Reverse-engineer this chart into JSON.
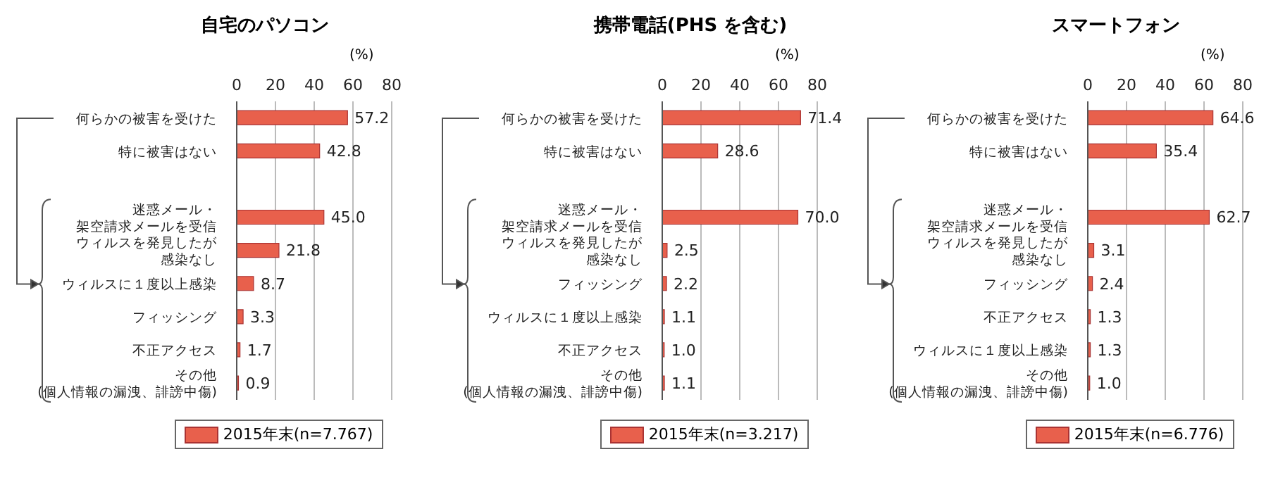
{
  "chart_data": [
    {
      "type": "bar",
      "orientation": "horizontal",
      "title": "自宅のパソコン",
      "xlabel": "(%)",
      "categories": [
        "何らかの被害を受けた",
        "特に被害はない",
        null,
        "迷惑メール・架空請求メールを受信",
        "ウィルスを発見したが感染なし",
        "ウィルスに１度以上感染",
        "フィッシング",
        "不正アクセス",
        "その他(個人情報の漏洩、誹謗中傷)"
      ],
      "series": [
        {
          "name": "2015年末(n=7.767)",
          "color": "#e8604c",
          "values": [
            57.2,
            42.8,
            null,
            45.0,
            21.8,
            8.7,
            3.3,
            1.7,
            0.9
          ],
          "value_labels": [
            "57.2",
            "42.8",
            null,
            "45.0",
            "21.8",
            "8.7",
            "3.3",
            "1.7",
            "0.9"
          ]
        }
      ],
      "xlim": [
        0,
        80
      ],
      "xticks": [
        0,
        20,
        40,
        60,
        80
      ],
      "grid": "x",
      "legend": "bottom"
    },
    {
      "type": "bar",
      "orientation": "horizontal",
      "title": "携帯電話(PHS を含む)",
      "xlabel": "(%)",
      "categories": [
        "何らかの被害を受けた",
        "特に被害はない",
        null,
        "迷惑メール・架空請求メールを受信",
        "ウィルスを発見したが感染なし",
        "フィッシング",
        "ウィルスに１度以上感染",
        "不正アクセス",
        "その他(個人情報の漏洩、誹謗中傷)"
      ],
      "series": [
        {
          "name": "2015年末(n=3.217)",
          "color": "#e8604c",
          "values": [
            71.4,
            28.6,
            null,
            70.0,
            2.5,
            2.2,
            1.1,
            1.0,
            1.1
          ],
          "value_labels": [
            "71.4",
            "28.6",
            null,
            "70.0",
            "2.5",
            "2.2",
            "1.1",
            "1.0",
            "1.1"
          ]
        }
      ],
      "xlim": [
        0,
        80
      ],
      "xticks": [
        0,
        20,
        40,
        60,
        80
      ],
      "grid": "x",
      "legend": "bottom"
    },
    {
      "type": "bar",
      "orientation": "horizontal",
      "title": "スマートフォン",
      "xlabel": "(%)",
      "categories": [
        "何らかの被害を受けた",
        "特に被害はない",
        null,
        "迷惑メール・架空請求メールを受信",
        "ウィルスを発見したが感染なし",
        "フィッシング",
        "不正アクセス",
        "ウィルスに１度以上感染",
        "その他(個人情報の漏洩、誹謗中傷)"
      ],
      "series": [
        {
          "name": "2015年末(n=6.776)",
          "color": "#e8604c",
          "values": [
            64.6,
            35.4,
            null,
            62.7,
            3.1,
            2.4,
            1.3,
            1.3,
            1.0
          ],
          "value_labels": [
            "64.6",
            "35.4",
            null,
            "62.7",
            "3.1",
            "2.4",
            "1.3",
            "1.3",
            "1.0"
          ]
        }
      ],
      "xlim": [
        0,
        80
      ],
      "xticks": [
        0,
        20,
        40,
        60,
        80
      ],
      "grid": "x",
      "legend": "bottom"
    }
  ]
}
